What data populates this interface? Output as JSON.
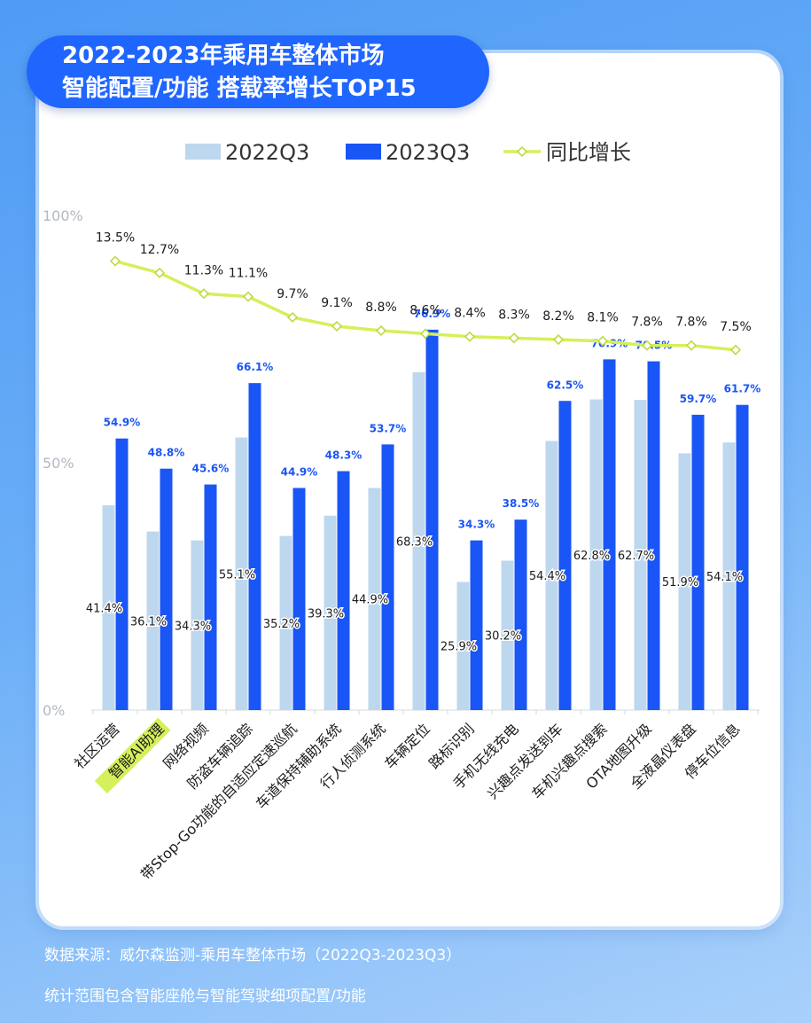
{
  "title": {
    "line1": "2022-2023年乘用车整体市场",
    "line2": "智能配置/功能 搭载率增长TOP15"
  },
  "footer": {
    "source": "数据来源：威尔森监测-乘用车整体市场（2022Q3-2023Q3）",
    "note": "统计范围包含智能座舱与智能驾驶细项配置/功能"
  },
  "colors": {
    "series_2022": "#bdd7ee",
    "series_2023": "#1a55f5",
    "growth_line": "#d4f05a",
    "highlight": "#d4f05a",
    "label_2023": "#1a55f5"
  },
  "chart_data": {
    "type": "bar",
    "categories": [
      "社区运营",
      "智能AI助理",
      "网络视频",
      "防盗车辆追踪",
      "带Stop-Go功能的自适应定速巡航",
      "车道保持辅助系统",
      "行人侦测系统",
      "车辆定位",
      "路标识别",
      "手机无线充电",
      "兴趣点发送到车",
      "车机兴趣点搜索",
      "OTA地图升级",
      "全液晶仪表盘",
      "停车位信息"
    ],
    "highlighted_category": "智能AI助理",
    "series": [
      {
        "name": "2022Q3",
        "values": [
          41.4,
          36.1,
          34.3,
          55.1,
          35.2,
          39.3,
          44.9,
          68.3,
          25.9,
          30.2,
          54.4,
          62.8,
          62.7,
          51.9,
          54.1
        ]
      },
      {
        "name": "2023Q3",
        "values": [
          54.9,
          48.8,
          45.6,
          66.1,
          44.9,
          48.3,
          53.7,
          76.9,
          34.3,
          38.5,
          62.5,
          70.9,
          70.5,
          59.7,
          61.7
        ]
      }
    ],
    "line_series": {
      "name": "同比增长",
      "values": [
        13.5,
        12.7,
        11.3,
        11.1,
        9.7,
        9.1,
        8.8,
        8.6,
        8.4,
        8.3,
        8.2,
        8.1,
        7.8,
        7.8,
        7.5
      ]
    },
    "y_ticks": [
      "0%",
      "50%",
      "100%"
    ],
    "ylim": [
      0,
      100
    ],
    "legend_position": "top",
    "grid": false
  }
}
